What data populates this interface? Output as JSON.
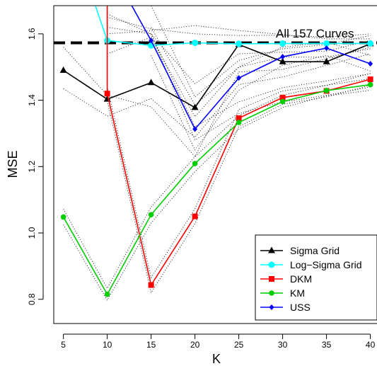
{
  "chart_data": {
    "type": "line",
    "title": "",
    "xlabel": "K",
    "ylabel": "MSE",
    "x": [
      5,
      10,
      15,
      20,
      25,
      30,
      35,
      40
    ],
    "xticks": [
      5,
      10,
      15,
      20,
      25,
      30,
      35,
      40
    ],
    "xtick_labels": [
      "5",
      "10",
      "15",
      "20",
      "25",
      "30",
      "35",
      "40"
    ],
    "yticks": [
      0.8,
      1.0,
      1.2,
      1.4,
      1.6
    ],
    "ytick_labels": [
      "0.8",
      "1.0",
      "1.2",
      "1.4",
      "1.6"
    ],
    "xlim": [
      3.9,
      41.0
    ],
    "ylim": [
      0.727,
      1.685
    ],
    "grid": false,
    "legend_position": "bottom-right",
    "reference_line": {
      "label": "All 157 Curves",
      "y": 1.573,
      "color": "#000000",
      "style": "dashed"
    },
    "series": [
      {
        "name": "Sigma Grid",
        "color": "#000000",
        "marker": "triangle",
        "values": [
          1.49,
          1.403,
          1.453,
          1.378,
          1.568,
          1.516,
          1.516,
          1.57
        ]
      },
      {
        "name": "Log−Sigma Grid",
        "color": "#00FFFF",
        "marker": "circle",
        "values": [
          null,
          1.58,
          1.565,
          1.573,
          1.57,
          1.571,
          1.571,
          1.571
        ],
        "start_from_above": 8.1
      },
      {
        "name": "DKM",
        "color": "#FF0000",
        "marker": "square",
        "values": [
          null,
          1.42,
          0.843,
          1.05,
          1.346,
          1.408,
          1.428,
          1.463
        ],
        "start_from_above": 10.0
      },
      {
        "name": "KM",
        "color": "#00CD00",
        "marker": "circle",
        "values": [
          1.048,
          0.815,
          1.055,
          1.209,
          1.333,
          1.396,
          1.429,
          1.447
        ]
      },
      {
        "name": "USS",
        "color": "#0000FF",
        "marker": "diamond",
        "values": [
          null,
          null,
          1.58,
          1.313,
          1.467,
          1.531,
          1.557,
          1.51
        ],
        "start_from_above": 11.9
      }
    ],
    "dotted_curves": [
      [
        1.56,
        1.415,
        1.38,
        1.23,
        1.485,
        1.493,
        1.525,
        1.56
      ],
      [
        1.435,
        1.352,
        1.405,
        1.288,
        1.447,
        1.47,
        1.505,
        1.54
      ],
      [
        1.072,
        0.833,
        1.078,
        1.23,
        1.353,
        1.415,
        1.445,
        1.465
      ],
      [
        1.025,
        0.797,
        1.03,
        1.185,
        1.313,
        1.378,
        1.413,
        1.43
      ],
      [
        null,
        1.44,
        0.865,
        1.073,
        1.372,
        1.428,
        1.445,
        1.481
      ],
      [
        null,
        1.398,
        0.82,
        1.028,
        1.32,
        1.388,
        1.41,
        1.445
      ],
      [
        null,
        1.6,
        1.61,
        1.625,
        1.61,
        1.598,
        1.585,
        1.585
      ],
      [
        null,
        1.65,
        1.615,
        1.6,
        1.595,
        1.596,
        1.59,
        1.6
      ],
      [
        null,
        null,
        1.62,
        1.385,
        1.5,
        1.56,
        1.575,
        1.535
      ],
      [
        null,
        null,
        1.535,
        1.25,
        1.43,
        1.505,
        1.535,
        1.488
      ],
      [
        null,
        1.66,
        1.6,
        1.45,
        1.54,
        1.545,
        1.548,
        1.58
      ],
      [
        null,
        null,
        1.685,
        1.41,
        1.52,
        1.555,
        1.568,
        1.595
      ],
      [
        null,
        1.54,
        1.59,
        1.35,
        1.5,
        1.53,
        1.53,
        1.555
      ],
      [
        null,
        1.62,
        1.6,
        1.32,
        1.395,
        1.438,
        1.458,
        1.48
      ],
      [
        null,
        null,
        1.6,
        1.28,
        1.36,
        1.395,
        1.415,
        1.44
      ]
    ]
  }
}
